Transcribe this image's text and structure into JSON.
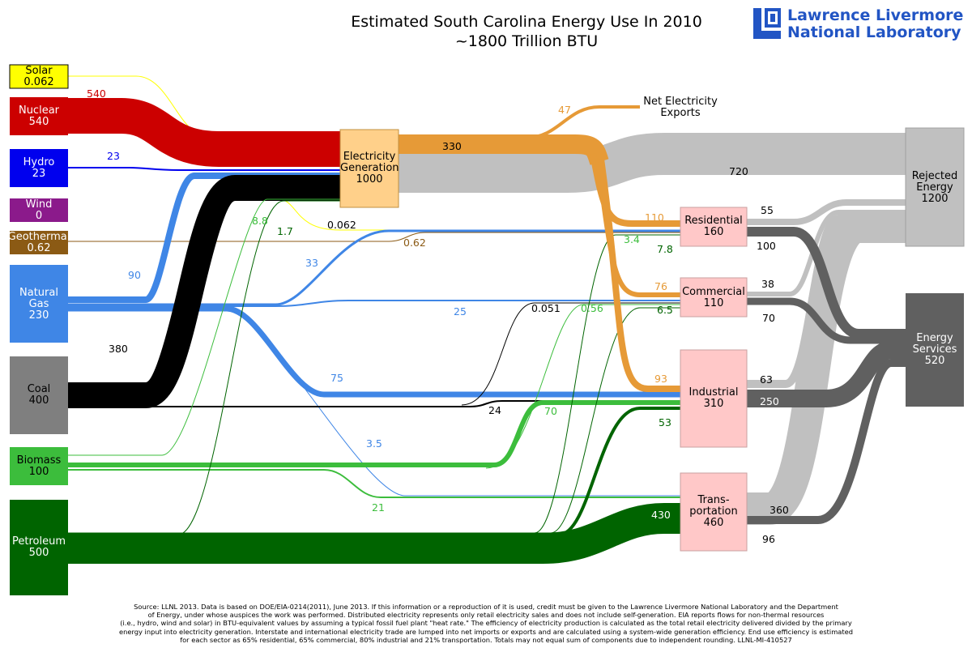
{
  "title_line1": "Estimated South Carolina Energy Use In 2010",
  "title_line2": "~1800 Trillion BTU",
  "logo": {
    "line1": "Lawrence Livermore",
    "line2": "National Laboratory",
    "color": "#2255c4"
  },
  "nodes": {
    "solar": {
      "name": "Solar",
      "value": "0.062",
      "color": "#ffff00"
    },
    "nuclear": {
      "name": "Nuclear",
      "value": "540",
      "color": "#cc0000"
    },
    "hydro": {
      "name": "Hydro",
      "value": "23",
      "color": "#0000ee"
    },
    "wind": {
      "name": "Wind",
      "value": "0",
      "color": "#8b1a8b"
    },
    "geothermal": {
      "name": "Geothermal",
      "value": "0.62",
      "color": "#8b5a14"
    },
    "natural_gas": {
      "name": "Natural Gas",
      "value": "230",
      "color": "#3f86e6"
    },
    "coal": {
      "name": "Coal",
      "value": "400",
      "color": "#7f7f7f"
    },
    "biomass": {
      "name": "Biomass",
      "value": "100",
      "color": "#3cbd3c"
    },
    "petroleum": {
      "name": "Petroleum",
      "value": "500",
      "color": "#006400"
    },
    "electricity": {
      "name": "Electricity Generation",
      "value": "1000",
      "color": "#ffd08a"
    },
    "residential": {
      "name": "Residential",
      "value": "160",
      "color": "#ffc8c8"
    },
    "commercial": {
      "name": "Commercial",
      "value": "110",
      "color": "#ffc8c8"
    },
    "industrial": {
      "name": "Industrial",
      "value": "310",
      "color": "#ffc8c8"
    },
    "transportation": {
      "name": "Trans- portation",
      "value": "460",
      "color": "#ffc8c8"
    },
    "rejected": {
      "name": "Rejected Energy",
      "value": "1200",
      "color": "#c0c0c0"
    },
    "services": {
      "name": "Energy Services",
      "value": "520",
      "color": "#606060"
    }
  },
  "exports_label": "Net Electricity Exports",
  "flow_labels": {
    "nuclear_elec": "540",
    "hydro_elec": "23",
    "gas_elec": "90",
    "coal_elec": "380",
    "biomass_elec": "8.8",
    "petro_elec": "1.7",
    "solar_res": "0.062",
    "geo_res": "0.62",
    "gas_res": "33",
    "gas_com": "25",
    "coal_com": "0.051",
    "biomass_com": "0.56",
    "gas_ind": "75",
    "coal_ind": "24",
    "biomass_ind": "70",
    "gas_trans": "3.5",
    "biomass_trans": "21",
    "petro_res": "3.4",
    "petro_com": "6.5",
    "petro_res2": "7.8",
    "petro_ind": "53",
    "petro_trans": "430",
    "elec_total": "330",
    "elec_exports": "47",
    "elec_rejected": "720",
    "elec_res": "110",
    "elec_com": "76",
    "elec_ind": "93",
    "res_rejected": "55",
    "res_services": "100",
    "com_rejected": "38",
    "com_services": "70",
    "ind_rejected": "63",
    "ind_services": "250",
    "trans_rejected": "360",
    "trans_services": "96"
  },
  "source_text": [
    "Source: LLNL 2013. Data is based on DOE/EIA-0214(2011), June 2013. If this information or a reproduction of it is used, credit must be given to the Lawrence Livermore National Laboratory and the Department",
    "of Energy, under whose auspices the work was performed. Distributed electricity represents only retail electricity sales and does not include self-generation.  EIA reports flows for non-thermal resources",
    "(i.e., hydro, wind and solar) in BTU-equivalent values by assuming a typical fossil fuel plant \"heat rate.\"  The efficiency of electricity production is calculated as the total retail electricity delivered divided by the primary",
    "energy input into electricity generation.  Interstate and international electricity trade are lumped into net imports or exports and are calculated using a system-wide generation efficiency.  End use efficiency is estimated",
    "for each sector as 65% residential, 65% commercial, 80% industrial and 21% transportation. Totals may not equal sum of components due to independent rounding. LLNL-MI-410527"
  ]
}
